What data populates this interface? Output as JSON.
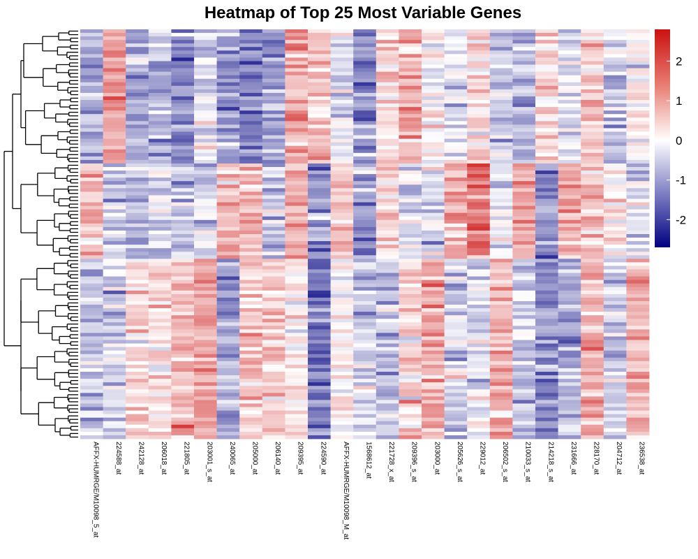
{
  "chart_data": {
    "type": "heatmap",
    "title": "Heatmap of Top 25 Most Variable Genes",
    "columns": [
      "AFFX-HUMRGE/M10098_5_at",
      "224588_at",
      "242128_at",
      "206018_at",
      "221805_at",
      "203001_s_at",
      "240065_at",
      "205000_at",
      "206140_at",
      "209395_at",
      "224590_at",
      "AFFX-HUMRGE/M10098_M_at",
      "1568612_at",
      "221728_x_at",
      "209396_s_at",
      "203000_at",
      "205626_s_at",
      "229012_at",
      "206502_s_at",
      "210033_s_at",
      "214218_s_at",
      "231666_at",
      "228170_at",
      "204712_at",
      "236538_at"
    ],
    "n_rows": 116,
    "color_scale": {
      "low": "#000080",
      "mid": "#ffffff",
      "high": "#cc1111",
      "range": [
        -2.7,
        2.8
      ],
      "ticks": [
        2,
        1,
        0,
        -1,
        -2
      ]
    },
    "row_clusters": [
      {
        "rows": 38,
        "profile": [
          -0.9,
          1.2,
          -0.9,
          -0.8,
          -1.2,
          -0.4,
          -1.0,
          -1.4,
          -1.0,
          1.0,
          0.6,
          -0.3,
          -1.3,
          0.5,
          0.9,
          0.0,
          -0.4,
          0.4,
          -0.5,
          -0.8,
          0.5,
          -0.4,
          0.6,
          -0.6,
          0.2
        ]
      },
      {
        "rows": 27,
        "profile": [
          0.8,
          -0.6,
          -0.7,
          -0.5,
          -0.6,
          -0.4,
          0.9,
          0.7,
          -0.7,
          1.0,
          -1.1,
          0.7,
          -1.0,
          0.4,
          -0.4,
          -0.3,
          1.0,
          1.5,
          -0.3,
          1.1,
          -1.2,
          1.0,
          0.6,
          0.3,
          -0.5
        ]
      },
      {
        "rows": 51,
        "profile": [
          -0.6,
          -0.4,
          0.5,
          0.3,
          0.8,
          1.1,
          -0.9,
          0.6,
          0.7,
          0.3,
          -1.5,
          0.1,
          -0.5,
          -0.7,
          0.5,
          1.0,
          -0.5,
          -0.3,
          0.9,
          -0.7,
          -1.3,
          -0.9,
          0.9,
          -0.5,
          0.9
        ]
      }
    ],
    "dendrogram": "row"
  }
}
